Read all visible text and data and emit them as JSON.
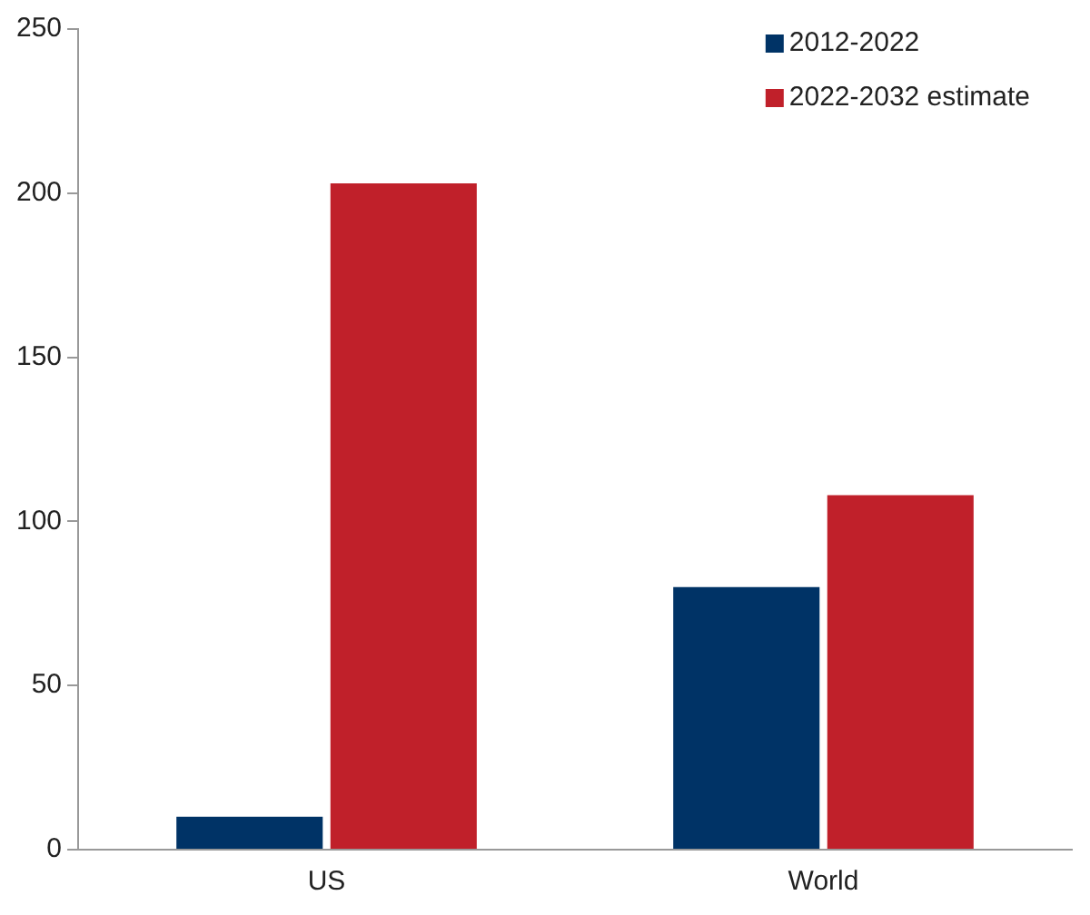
{
  "chart_data": {
    "type": "bar",
    "categories": [
      "US",
      "World"
    ],
    "series": [
      {
        "name": "2012-2022",
        "color": "#003366",
        "values": [
          10,
          80
        ]
      },
      {
        "name": "2022-2032 estimate",
        "color": "#c0202a",
        "values": [
          203,
          108
        ]
      }
    ],
    "ylim": [
      0,
      250
    ],
    "yticks": [
      0,
      50,
      100,
      150,
      200,
      250
    ],
    "grid": false,
    "legend": "top right"
  }
}
